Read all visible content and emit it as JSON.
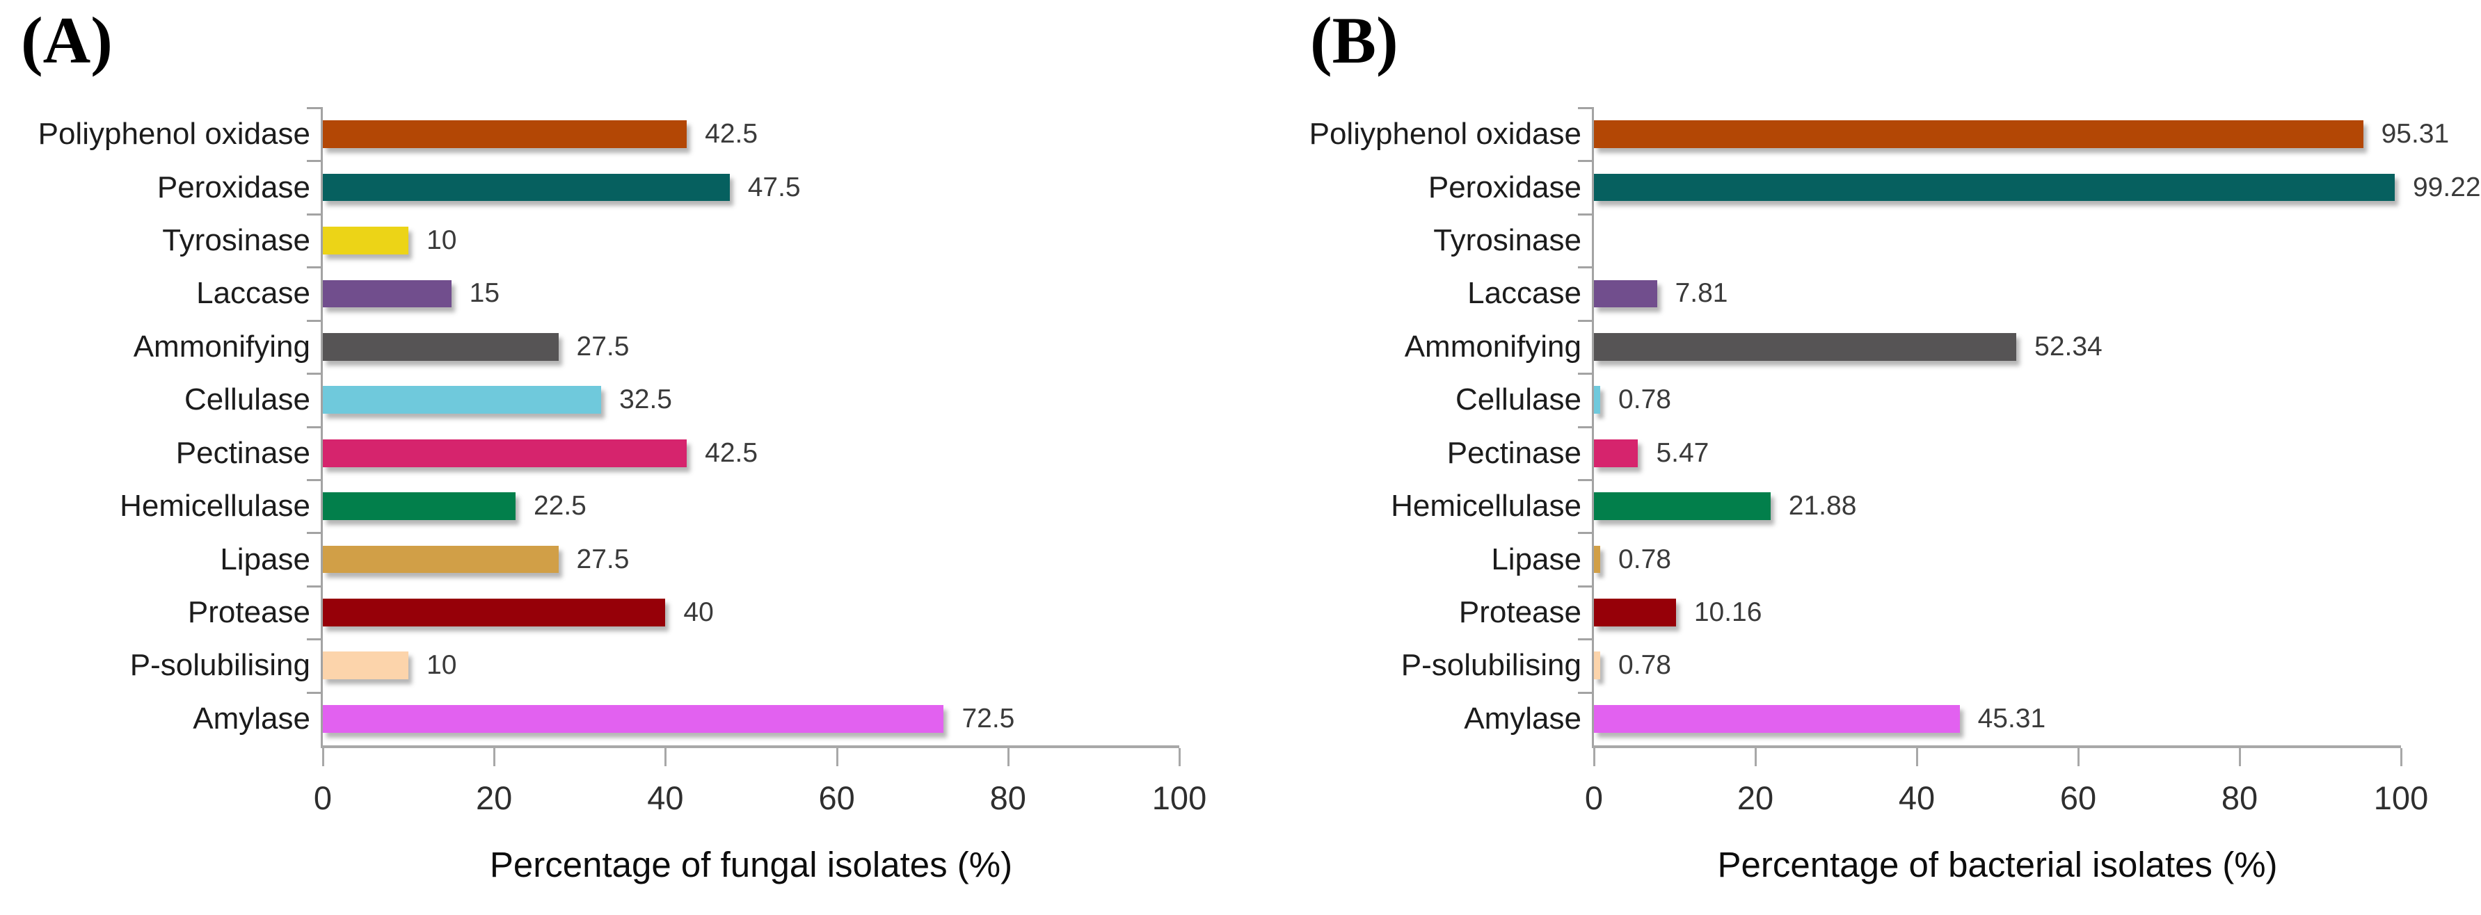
{
  "page": {
    "background": "#ffffff"
  },
  "panels": [
    {
      "corner_label": "(A)"
    },
    {
      "corner_label": "(B)"
    }
  ],
  "colors": {
    "axis": "#a3a3a3",
    "bar_palette": [
      "#b34705",
      "#06605f",
      "#ecd417",
      "#714e8d",
      "#565455",
      "#6fc9dc",
      "#d6246d",
      "#027f4b",
      "#d19f47",
      "#960008",
      "#fcd4ab",
      "#e261f0"
    ]
  },
  "chart_data": [
    {
      "type": "bar",
      "orientation": "horizontal",
      "panel": "A",
      "title": "",
      "xlabel": "Percentage of fungal isolates (%)",
      "categories": [
        "Poliyphenol oxidase",
        "Peroxidase",
        "Tyrosinase",
        "Laccase",
        "Ammonifying",
        "Cellulase",
        "Pectinase",
        "Hemicellulase",
        "Lipase",
        "Protease",
        "P-solubilising",
        "Amylase"
      ],
      "values": [
        42.5,
        47.5,
        10,
        15,
        27.5,
        32.5,
        42.5,
        22.5,
        27.5,
        40,
        10,
        72.5
      ],
      "value_labels": [
        "42.5",
        "47.5",
        "10",
        "15",
        "27.5",
        "32.5",
        "42.5",
        "22.5",
        "27.5",
        "40",
        "10",
        "72.5"
      ],
      "xlim": [
        0,
        100
      ],
      "xticks": [
        0,
        20,
        40,
        60,
        80,
        100
      ],
      "grid": false,
      "legend": "none"
    },
    {
      "type": "bar",
      "orientation": "horizontal",
      "panel": "B",
      "title": "",
      "xlabel": "Percentage of bacterial isolates (%)",
      "categories": [
        "Poliyphenol oxidase",
        "Peroxidase",
        "Tyrosinase",
        "Laccase",
        "Ammonifying",
        "Cellulase",
        "Pectinase",
        "Hemicellulase",
        "Lipase",
        "Protease",
        "P-solubilising",
        "Amylase"
      ],
      "values": [
        95.31,
        99.22,
        0,
        7.81,
        52.34,
        0.78,
        5.47,
        21.88,
        0.78,
        10.16,
        0.78,
        45.31
      ],
      "value_labels": [
        "95.31",
        "99.22",
        "",
        "7.81",
        "52.34",
        "0.78",
        "5.47",
        "21.88",
        "0.78",
        "10.16",
        "0.78",
        "45.31"
      ],
      "xlim": [
        0,
        100
      ],
      "xticks": [
        0,
        20,
        40,
        60,
        80,
        100
      ],
      "grid": false,
      "legend": "none"
    }
  ]
}
